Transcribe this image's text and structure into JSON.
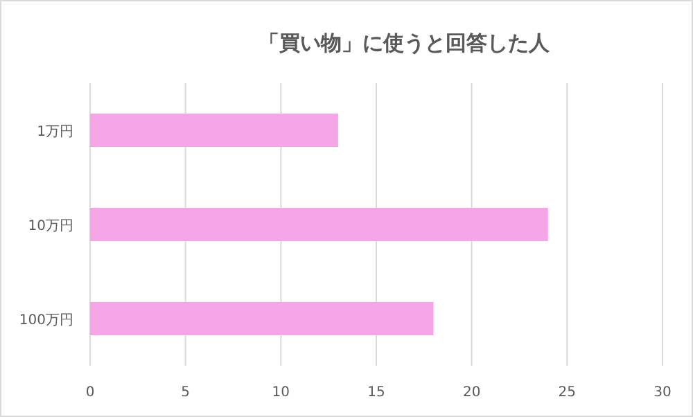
{
  "chart_data": {
    "type": "bar",
    "orientation": "horizontal",
    "title": "「買い物」に使うと回答した人",
    "categories": [
      "1万円",
      "10万円",
      "100万円"
    ],
    "values": [
      13,
      24,
      18
    ],
    "color": "#f4a6e6",
    "xlim": [
      0,
      30
    ],
    "xticks": [
      0,
      5,
      10,
      15,
      20,
      25,
      30
    ],
    "grid": "x"
  }
}
